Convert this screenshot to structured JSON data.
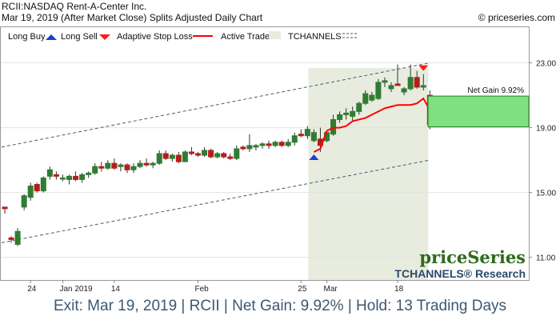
{
  "header": {
    "line1": "RCII:NASDAQ Rent-A-Center Inc.",
    "line2": "Mar 19, 2019 (After Market Close)  Splits Adjusted Daily Chart",
    "copyright": "© priceseries.com"
  },
  "legend": {
    "long_buy": "Long Buy",
    "long_sell": "Long Sell",
    "adaptive_stop": "Adaptive Stop Loss",
    "active_trade": "Active Trade",
    "tchannels": "TCHANNELS"
  },
  "colors": {
    "up": "#2e7d32",
    "down": "#b71c1c",
    "stop": "#ff0000",
    "buy": "#1f3fcc",
    "sell": "#ff1a1a",
    "active": "#e8ecdf",
    "gain": "#7fe07f",
    "channel": "#4a5a70"
  },
  "brand": {
    "name": "priceSeries",
    "tagline": "TCHANNELS® Research"
  },
  "footer": {
    "text": "Exit: Mar 19, 2019 | RCII | Net Gain: 9.92% | Hold: 13 Trading Days"
  },
  "chart_data": {
    "type": "candlestick",
    "y_ticks": [
      "23.00",
      "19.00",
      "15.00",
      "11.00"
    ],
    "y_tick_values": [
      23,
      19,
      15,
      11
    ],
    "ylim": [
      9.6,
      25.2
    ],
    "x_labels": [
      {
        "label": "24",
        "index": 4
      },
      {
        "label": "Jan 2019",
        "index": 9
      },
      {
        "label": "14",
        "index": 17
      },
      {
        "label": "Feb",
        "index": 30
      },
      {
        "label": "25",
        "index": 46
      },
      {
        "label": "Mar",
        "index": 50
      },
      {
        "label": "18",
        "index": 61
      }
    ],
    "candles": [
      [
        14.1,
        14.1,
        13.7,
        14.0
      ],
      [
        12.2,
        12.3,
        11.9,
        12.1
      ],
      [
        11.8,
        12.8,
        11.7,
        12.6
      ],
      [
        14.1,
        14.9,
        13.9,
        14.8
      ],
      [
        14.7,
        15.6,
        14.5,
        15.4
      ],
      [
        15.5,
        15.6,
        15.0,
        15.1
      ],
      [
        15.1,
        16.0,
        15.0,
        15.9
      ],
      [
        16.0,
        16.6,
        15.8,
        16.4
      ],
      [
        16.1,
        16.3,
        15.8,
        16.0
      ],
      [
        15.9,
        16.1,
        15.7,
        15.9
      ],
      [
        15.8,
        16.1,
        15.5,
        16.0
      ],
      [
        16.0,
        16.3,
        15.7,
        15.8
      ],
      [
        15.8,
        16.2,
        15.6,
        16.1
      ],
      [
        16.1,
        16.3,
        15.9,
        16.2
      ],
      [
        16.2,
        16.8,
        16.1,
        16.6
      ],
      [
        16.6,
        16.9,
        16.3,
        16.5
      ],
      [
        16.5,
        17.0,
        16.4,
        16.8
      ],
      [
        16.8,
        17.1,
        16.4,
        16.5
      ],
      [
        16.6,
        16.8,
        16.3,
        16.7
      ],
      [
        16.7,
        16.8,
        16.2,
        16.4
      ],
      [
        16.4,
        16.8,
        16.2,
        16.6
      ],
      [
        16.6,
        17.0,
        16.5,
        16.8
      ],
      [
        16.8,
        17.1,
        16.6,
        16.7
      ],
      [
        16.7,
        16.9,
        16.5,
        16.8
      ],
      [
        16.8,
        17.6,
        16.7,
        17.4
      ],
      [
        17.4,
        17.6,
        17.0,
        17.1
      ],
      [
        17.1,
        17.4,
        16.9,
        17.3
      ],
      [
        17.3,
        17.5,
        16.8,
        16.9
      ],
      [
        16.9,
        17.6,
        16.9,
        17.5
      ],
      [
        17.5,
        17.8,
        17.3,
        17.4
      ],
      [
        17.4,
        17.5,
        17.2,
        17.3
      ],
      [
        17.3,
        17.8,
        17.2,
        17.6
      ],
      [
        17.6,
        17.7,
        17.1,
        17.2
      ],
      [
        17.2,
        17.5,
        17.1,
        17.4
      ],
      [
        17.4,
        17.5,
        17.1,
        17.2
      ],
      [
        17.2,
        17.4,
        17.0,
        17.1
      ],
      [
        17.1,
        17.9,
        17.0,
        17.7
      ],
      [
        17.8,
        17.9,
        17.6,
        17.7
      ],
      [
        17.7,
        18.6,
        17.5,
        17.9
      ],
      [
        17.8,
        18.0,
        17.6,
        17.9
      ],
      [
        17.9,
        18.1,
        17.7,
        18.0
      ],
      [
        18.0,
        18.2,
        17.7,
        17.9
      ],
      [
        17.9,
        18.2,
        17.8,
        18.1
      ],
      [
        18.1,
        18.2,
        17.8,
        17.9
      ],
      [
        17.9,
        18.3,
        17.8,
        18.1
      ],
      [
        18.1,
        18.7,
        17.9,
        18.5
      ],
      [
        18.6,
        18.9,
        18.4,
        18.5
      ],
      [
        18.5,
        19.1,
        18.3,
        18.9
      ],
      [
        18.2,
        18.9,
        18.1,
        18.7
      ],
      [
        18.3,
        19.0,
        17.5,
        17.9
      ],
      [
        18.2,
        18.8,
        18.1,
        18.7
      ],
      [
        18.6,
        19.8,
        18.5,
        19.5
      ],
      [
        19.5,
        20.0,
        19.3,
        19.8
      ],
      [
        19.8,
        20.2,
        19.5,
        19.9
      ],
      [
        19.7,
        20.3,
        19.4,
        20.0
      ],
      [
        20.0,
        20.6,
        19.8,
        20.5
      ],
      [
        20.5,
        21.3,
        20.4,
        21.1
      ],
      [
        20.7,
        21.2,
        20.6,
        21.0
      ],
      [
        20.8,
        22.0,
        20.7,
        21.8
      ],
      [
        21.8,
        22.1,
        21.5,
        21.9
      ],
      [
        21.4,
        21.8,
        21.2,
        21.6
      ],
      [
        21.7,
        22.9,
        21.6,
        21.6
      ],
      [
        21.2,
        21.5,
        21.0,
        21.4
      ],
      [
        21.4,
        22.9,
        21.3,
        22.1
      ],
      [
        22.1,
        22.5,
        21.4,
        21.5
      ],
      [
        21.5,
        22.3,
        21.3,
        21.6
      ],
      [
        21.0,
        21.3,
        18.9,
        19.2
      ]
    ],
    "adaptive_stop": [
      [
        48,
        17.5
      ],
      [
        49,
        17.7
      ],
      [
        50,
        18.8
      ],
      [
        51,
        19.0
      ],
      [
        52,
        19.0
      ],
      [
        53,
        19.1
      ],
      [
        54,
        19.4
      ],
      [
        55,
        19.5
      ],
      [
        56,
        19.6
      ],
      [
        57,
        19.8
      ],
      [
        58,
        20.0
      ],
      [
        59,
        20.2
      ],
      [
        60,
        20.3
      ],
      [
        61,
        20.4
      ],
      [
        62,
        20.4
      ],
      [
        63,
        20.4
      ],
      [
        64,
        20.5
      ],
      [
        65,
        20.8
      ],
      [
        66,
        20.1
      ]
    ],
    "channel_upper": [
      [
        -0.5,
        17.8
      ],
      [
        66,
        23.0
      ]
    ],
    "channel_lower": [
      [
        -0.5,
        11.9
      ],
      [
        66,
        17.0
      ]
    ],
    "active_trade": [
      48,
      65
    ],
    "buy_signal": {
      "index": 48,
      "value": 17.2
    },
    "sell_signal": {
      "index": 65,
      "value": 22.7
    },
    "gain_box": {
      "from": 19.05,
      "to": 20.95,
      "label": "Net Gain 9.92%"
    }
  }
}
